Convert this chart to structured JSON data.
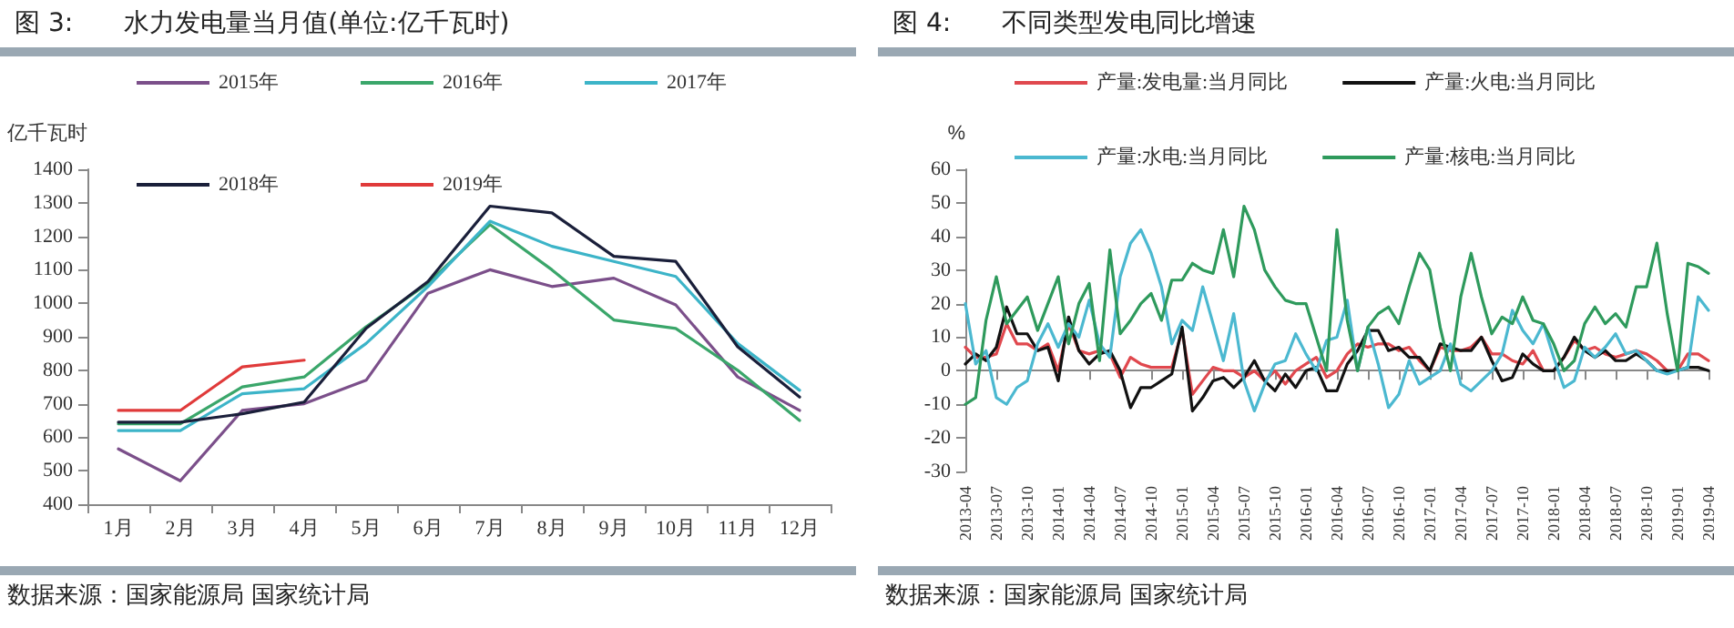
{
  "chart_data": [
    {
      "type": "line",
      "title": "图 3:　　水力发电量当月值(单位:亿千瓦时)",
      "ylabel": "亿千瓦时",
      "annotations": [
        "数据来源：国家能源局 国家统计局"
      ],
      "categories": [
        "1月",
        "2月",
        "3月",
        "4月",
        "5月",
        "6月",
        "7月",
        "8月",
        "9月",
        "10月",
        "11月",
        "12月"
      ],
      "series": [
        {
          "name": "2015年",
          "color": "#7b4f8a",
          "values": [
            565,
            470,
            680,
            700,
            770,
            1030,
            1100,
            1050,
            1075,
            995,
            780,
            680
          ]
        },
        {
          "name": "2016年",
          "color": "#3aa66a",
          "values": [
            640,
            640,
            750,
            780,
            930,
            1060,
            1235,
            1100,
            950,
            925,
            800,
            650
          ]
        },
        {
          "name": "2017年",
          "color": "#3cb4c8",
          "values": [
            620,
            620,
            730,
            745,
            880,
            1050,
            1245,
            1170,
            1125,
            1080,
            880,
            740
          ]
        },
        {
          "name": "2018年",
          "color": "#1a1f3a",
          "values": [
            645,
            645,
            670,
            705,
            925,
            1065,
            1290,
            1270,
            1140,
            1125,
            870,
            720
          ]
        },
        {
          "name": "2019年",
          "color": "#e03a3a",
          "values": [
            680,
            680,
            810,
            830,
            null,
            null,
            null,
            null,
            null,
            null,
            null,
            null
          ]
        }
      ],
      "ylim": [
        400,
        1400
      ],
      "yticks": [
        400,
        500,
        600,
        700,
        800,
        900,
        1000,
        1100,
        1200,
        1300,
        1400
      ],
      "grid": false,
      "legend": "top",
      "marker": "none",
      "line_style": "solid"
    },
    {
      "type": "line",
      "title": "图 4:　　不同类型发电同比增速",
      "ylabel": "%",
      "annotations": [
        "数据来源：国家能源局 国家统计局"
      ],
      "categories": [
        "2013-04",
        null,
        null,
        "2013-07",
        null,
        null,
        "2013-10",
        null,
        null,
        "2014-01",
        null,
        null,
        "2014-04",
        null,
        null,
        "2014-07",
        null,
        null,
        "2014-10",
        null,
        null,
        "2015-01",
        null,
        null,
        "2015-04",
        null,
        null,
        "2015-07",
        null,
        null,
        "2015-10",
        null,
        null,
        "2016-01",
        null,
        null,
        "2016-04",
        null,
        null,
        "2016-07",
        null,
        null,
        "2016-10",
        null,
        null,
        "2017-01",
        null,
        null,
        "2017-04",
        null,
        null,
        "2017-07",
        null,
        null,
        "2017-10",
        null,
        null,
        "2018-01",
        null,
        null,
        "2018-04",
        null,
        null,
        "2018-07",
        null,
        null,
        "2018-10",
        null,
        null,
        "2019-01",
        null,
        null,
        "2019-04"
      ],
      "series": [
        {
          "name": "产量:发电量:当月同比",
          "color": "#e0484e",
          "values": [
            7,
            4,
            4,
            5,
            14,
            8,
            8,
            6,
            8,
            0,
            14,
            6,
            5,
            6,
            5,
            -2,
            4,
            2,
            1,
            1,
            1,
            12,
            -7,
            -3,
            1,
            0,
            0,
            -2,
            0,
            -3,
            0,
            -4,
            0,
            2,
            4,
            -2,
            0,
            5,
            8,
            7,
            8,
            8,
            6,
            7,
            3,
            0,
            7,
            6,
            6,
            7,
            10,
            5,
            5,
            3,
            2,
            6,
            0,
            0,
            4,
            9,
            6,
            7,
            5,
            4,
            5,
            6,
            5,
            3,
            0,
            0,
            5,
            5,
            3
          ]
        },
        {
          "name": "产量:火电:当月同比",
          "color": "#111111",
          "values": [
            2,
            5,
            3,
            7,
            19,
            11,
            11,
            6,
            7,
            -3,
            16,
            6,
            2,
            5,
            6,
            0,
            -11,
            -5,
            -5,
            -3,
            -1,
            13,
            -12,
            -8,
            -3,
            -2,
            -5,
            -2,
            3,
            -3,
            -6,
            -1,
            -5,
            0,
            1,
            -6,
            -6,
            2,
            6,
            12,
            12,
            6,
            7,
            4,
            4,
            0,
            8,
            7,
            6,
            6,
            10,
            3,
            -3,
            -2,
            5,
            2,
            0,
            0,
            4,
            10,
            6,
            4,
            6,
            3,
            3,
            5,
            3,
            0,
            0,
            0,
            1,
            1,
            0
          ]
        },
        {
          "name": "产量:水电:当月同比",
          "color": "#4bb8d0",
          "values": [
            20,
            2,
            6,
            -8,
            -10,
            -5,
            -3,
            8,
            14,
            7,
            14,
            10,
            21,
            8,
            4,
            28,
            38,
            42,
            35,
            25,
            8,
            15,
            12,
            25,
            14,
            3,
            17,
            -3,
            -12,
            -4,
            2,
            3,
            11,
            5,
            0,
            9,
            10,
            21,
            0,
            13,
            2,
            -11,
            -7,
            3,
            -4,
            -2,
            0,
            8,
            -4,
            -6,
            -3,
            0,
            5,
            18,
            12,
            8,
            14,
            4,
            -5,
            -3,
            7,
            4,
            7,
            11,
            5,
            6,
            3,
            0,
            -1,
            0,
            1,
            22,
            18
          ]
        },
        {
          "name": "产量:核电:当月同比",
          "color": "#2e9a5c",
          "values": [
            -10,
            -8,
            15,
            28,
            14,
            18,
            22,
            12,
            20,
            28,
            8,
            20,
            26,
            3,
            36,
            11,
            15,
            20,
            23,
            15,
            27,
            27,
            32,
            30,
            29,
            42,
            28,
            49,
            42,
            30,
            25,
            21,
            20,
            20,
            10,
            0,
            42,
            15,
            0,
            13,
            17,
            19,
            14,
            25,
            35,
            30,
            13,
            0,
            22,
            35,
            22,
            11,
            16,
            14,
            22,
            15,
            14,
            8,
            0,
            3,
            14,
            19,
            14,
            17,
            13,
            25,
            25,
            38,
            17,
            0,
            32,
            31,
            29
          ]
        }
      ],
      "ylim": [
        -30,
        60
      ],
      "yticks": [
        -30,
        -20,
        -10,
        0,
        10,
        20,
        30,
        40,
        50,
        60
      ],
      "legend": "top",
      "marker": "none",
      "line_style": "solid"
    }
  ]
}
